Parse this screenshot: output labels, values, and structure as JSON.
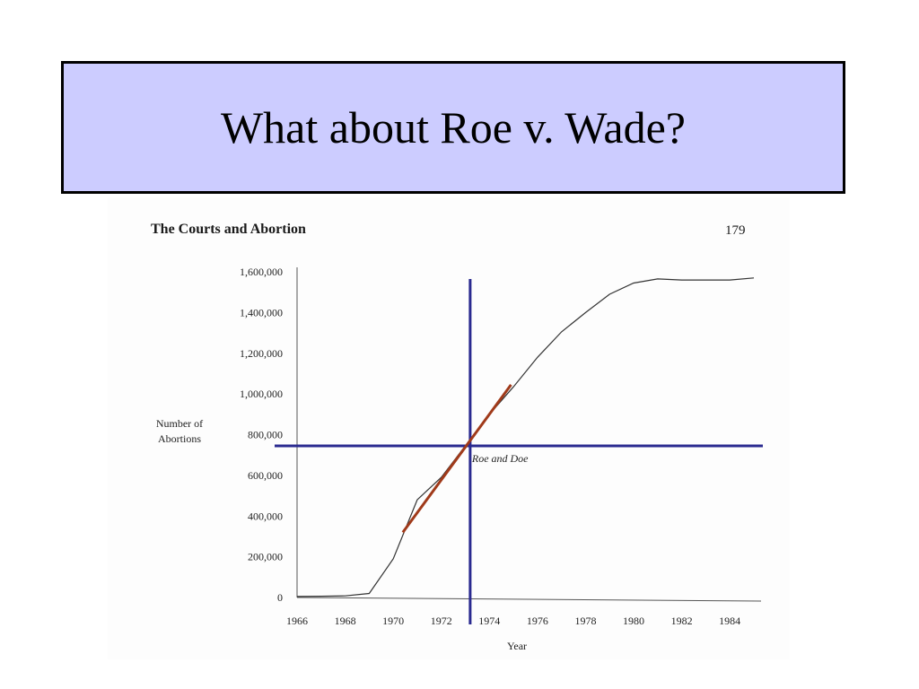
{
  "slide": {
    "title": "What about Roe v. Wade?"
  },
  "colors": {
    "title_background": "#ccccff",
    "marker_lines": "#2a2a90",
    "trend_line": "#a03a1a",
    "data_line": "#333333"
  },
  "figure": {
    "header": "The Courts and Abortion",
    "page_number": "179"
  },
  "chart_data": {
    "type": "line",
    "title": "",
    "xlabel": "Year",
    "ylabel": "Number of Abortions",
    "xlim": [
      1966,
      1985.3
    ],
    "ylim": [
      0,
      1600000
    ],
    "x_ticks": [
      "1966",
      "1968",
      "1970",
      "1972",
      "1974",
      "1976",
      "1978",
      "1980",
      "1982",
      "1984"
    ],
    "y_ticks": [
      "0",
      "200,000",
      "400,000",
      "600,000",
      "800,000",
      "1,000,000",
      "1,200,000",
      "1,400,000",
      "1,600,000"
    ],
    "grid": false,
    "series": [
      {
        "x": [
          1966,
          1967,
          1968,
          1969,
          1970,
          1971,
          1972,
          1973,
          1974,
          1975,
          1976,
          1977,
          1978,
          1979,
          1980,
          1981,
          1982,
          1983,
          1984,
          1985
        ],
        "y": [
          5000,
          6000,
          8000,
          20000,
          190000,
          480000,
          590000,
          745000,
          900000,
          1035000,
          1180000,
          1305000,
          1400000,
          1490000,
          1545000,
          1565000,
          1560000,
          1560000,
          1560000,
          1570000
        ]
      }
    ],
    "annotations": [
      {
        "type": "vertical-line",
        "x": 1973.2,
        "color": "#2a2a90",
        "label": ""
      },
      {
        "type": "horizontal-line",
        "y": 745000,
        "color": "#2a2a90",
        "label": "Roe and Doe"
      },
      {
        "type": "trend-line",
        "x": [
          1970.4,
          1974.9
        ],
        "y": [
          320000,
          1045000
        ],
        "color": "#a03a1a"
      }
    ]
  }
}
